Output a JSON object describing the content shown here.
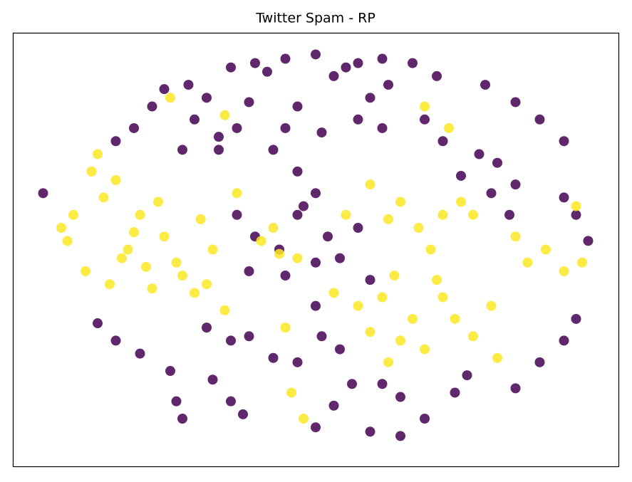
{
  "chart_data": {
    "type": "scatter",
    "title": "Twitter Spam - RP",
    "series": [
      {
        "color": "#440154",
        "x": [
          36,
          40,
          45,
          50,
          53,
          57,
          61,
          66,
          70,
          78,
          83,
          87,
          91,
          25,
          23,
          20,
          17,
          32,
          30,
          28,
          39,
          37,
          34,
          47,
          45,
          43,
          51,
          59,
          57,
          61,
          68,
          71,
          77,
          80,
          83,
          79,
          82,
          91,
          93,
          95,
          5,
          37,
          40,
          47,
          52,
          57,
          50,
          45,
          54,
          39,
          59,
          47,
          50,
          14,
          17,
          21,
          32,
          36,
          39,
          43,
          26,
          27,
          28,
          33,
          36,
          38,
          50,
          51,
          54,
          47,
          56,
          53,
          50,
          59,
          64,
          68,
          73,
          75,
          61,
          64,
          83,
          87,
          91,
          93,
          42,
          55,
          62,
          74,
          29,
          34,
          48,
          44
        ],
        "values": [
          92,
          93,
          94,
          95,
          90,
          93,
          94,
          93,
          90,
          88,
          84,
          80,
          75,
          87,
          83,
          78,
          75,
          85,
          80,
          73,
          84,
          78,
          73,
          83,
          78,
          73,
          77,
          85,
          80,
          78,
          80,
          75,
          72,
          70,
          65,
          63,
          58,
          62,
          58,
          52,
          63,
          58,
          53,
          58,
          53,
          55,
          47,
          44,
          48,
          45,
          43,
          68,
          63,
          33,
          29,
          26,
          32,
          29,
          30,
          25,
          22,
          15,
          11,
          20,
          15,
          12,
          37,
          30,
          27,
          24,
          19,
          14,
          9,
          8,
          7,
          11,
          17,
          21,
          19,
          16,
          18,
          24,
          29,
          34,
          91,
          92,
          88,
          67,
          88,
          76,
          60,
          50
        ]
      },
      {
        "color": "#fde725",
        "x": [
          14,
          17,
          10,
          9,
          12,
          16,
          21,
          25,
          19,
          27,
          23,
          30,
          32,
          33,
          37,
          43,
          59,
          64,
          67,
          71,
          74,
          83,
          85,
          91,
          94,
          57,
          61,
          66,
          71,
          64,
          59,
          68,
          76,
          79,
          80,
          45,
          46,
          48,
          26,
          35,
          72,
          68,
          93,
          13,
          15,
          20,
          24,
          28,
          35,
          41,
          47,
          55,
          62,
          69,
          76,
          53,
          63,
          73,
          62,
          88,
          8,
          18,
          22,
          31,
          44,
          70
        ],
        "values": [
          72,
          66,
          58,
          52,
          45,
          42,
          58,
          53,
          50,
          47,
          41,
          40,
          42,
          50,
          63,
          55,
          65,
          61,
          55,
          58,
          61,
          53,
          47,
          45,
          47,
          37,
          39,
          34,
          39,
          29,
          31,
          27,
          30,
          37,
          25,
          32,
          17,
          11,
          85,
          81,
          78,
          83,
          60,
          68,
          62,
          54,
          61,
          44,
          36,
          52,
          48,
          58,
          57,
          50,
          58,
          40,
          44,
          34,
          24,
          50,
          55,
          48,
          46,
          57,
          49,
          43
        ]
      }
    ]
  }
}
